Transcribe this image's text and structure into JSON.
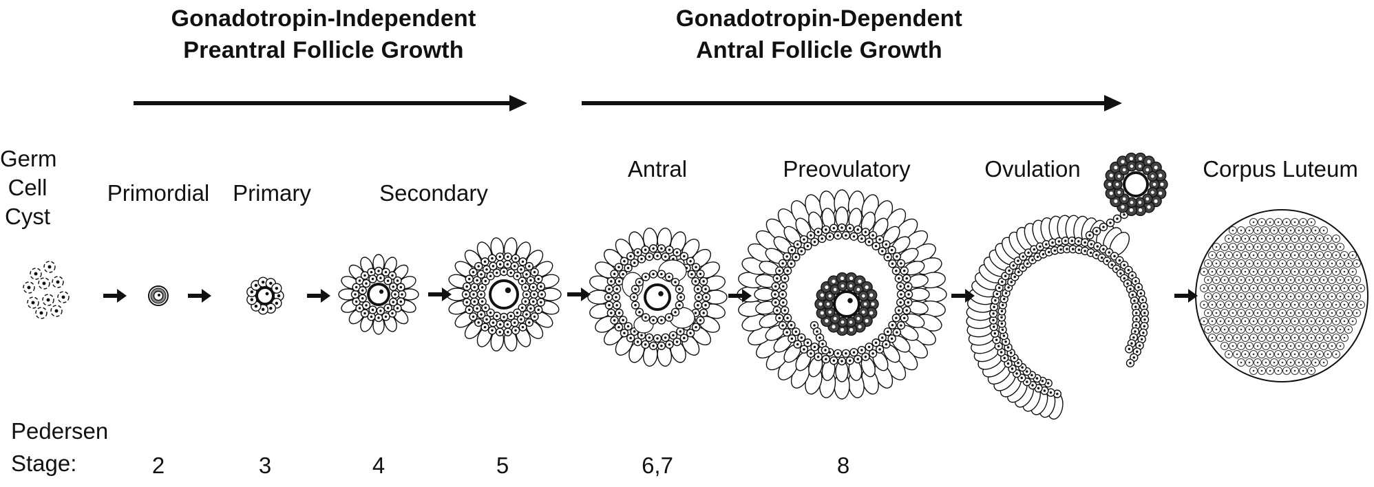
{
  "phases": [
    {
      "title_line1": "Gonadotropin-Independent",
      "title_line2": "Preantral Follicle Growth"
    },
    {
      "title_line1": "Gonadotropin-Dependent",
      "title_line2": "Antral Follicle Growth"
    }
  ],
  "stages": [
    {
      "lines": [
        "Germ",
        "Cell",
        "Cyst"
      ]
    },
    {
      "label": "Primordial"
    },
    {
      "label": "Primary"
    },
    {
      "label": "Secondary"
    },
    {
      "label": "Antral"
    },
    {
      "label": "Preovulatory"
    },
    {
      "label": "Ovulation"
    },
    {
      "label": "Corpus Luteum"
    }
  ],
  "pedersen": {
    "label_line1": "Pedersen",
    "label_line2": "Stage:",
    "numbers": [
      "2",
      "3",
      "4",
      "5",
      "6,7",
      "8"
    ]
  }
}
